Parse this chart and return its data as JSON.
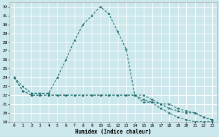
{
  "xlabel": "Humidex (Indice chaleur)",
  "background_color": "#cce8ec",
  "grid_color": "#ffffff",
  "line_color": "#1a6b6b",
  "xlim": [
    -0.5,
    23.5
  ],
  "ylim": [
    19,
    32.5
  ],
  "xticks": [
    0,
    1,
    2,
    3,
    4,
    5,
    6,
    7,
    8,
    9,
    10,
    11,
    12,
    13,
    14,
    15,
    16,
    17,
    18,
    19,
    20,
    21,
    22,
    23
  ],
  "yticks": [
    19,
    20,
    21,
    22,
    23,
    24,
    25,
    26,
    27,
    28,
    29,
    30,
    31,
    32
  ],
  "series1_x": [
    0,
    1,
    2,
    3,
    4,
    5,
    6,
    7,
    8,
    9,
    10,
    11,
    12,
    13,
    14,
    15,
    16,
    17,
    18,
    19,
    20,
    21,
    22,
    23
  ],
  "series1_y": [
    24.0,
    23.0,
    22.2,
    22.2,
    22.2,
    24.0,
    26.0,
    28.2,
    30.0,
    31.0,
    32.0,
    31.2,
    29.2,
    27.2,
    22.0,
    21.2,
    21.2,
    20.5,
    20.0,
    19.5,
    19.2,
    19.0,
    19.0,
    19.0
  ],
  "series2_x": [
    0,
    1,
    2,
    3,
    4,
    5,
    6,
    7,
    8,
    9,
    10,
    11,
    12,
    13,
    14,
    15,
    16,
    17,
    18,
    19,
    20,
    21,
    22,
    23
  ],
  "series2_y": [
    24.0,
    22.5,
    22.0,
    22.0,
    22.0,
    22.0,
    22.0,
    22.0,
    22.0,
    22.0,
    22.0,
    22.0,
    22.0,
    22.0,
    22.0,
    21.5,
    21.2,
    21.0,
    20.5,
    20.2,
    20.0,
    20.0,
    19.5,
    19.2
  ],
  "series3_x": [
    0,
    1,
    2,
    3,
    4,
    5,
    6,
    7,
    8,
    9,
    10,
    11,
    12,
    13,
    14,
    15,
    16,
    17,
    18,
    19,
    20,
    21,
    22,
    23
  ],
  "series3_y": [
    24.0,
    22.5,
    22.0,
    22.0,
    22.0,
    22.0,
    22.0,
    22.0,
    22.0,
    22.0,
    22.0,
    22.0,
    22.0,
    22.0,
    22.0,
    22.0,
    21.5,
    21.0,
    21.0,
    20.5,
    20.2,
    20.0,
    19.5,
    19.2
  ]
}
